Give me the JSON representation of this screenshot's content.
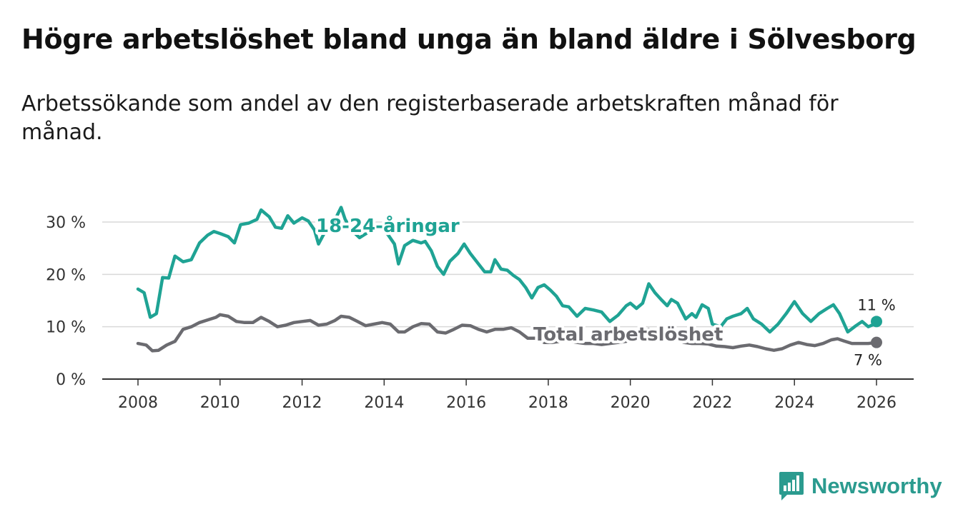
{
  "title": "Högre arbetslöshet bland unga än bland äldre i Sölvesborg",
  "subtitle": "Arbetssökande som andel av den registerbaserade arbetskraften månad för månad.",
  "brand": {
    "name": "Newsworthy",
    "icon": "newsworthy-bar-chart-icon",
    "color": "#2b9b8f"
  },
  "chart_data": {
    "type": "line",
    "title": "Högre arbetslöshet bland unga än bland äldre i Sölvesborg",
    "xlabel": "",
    "ylabel": "",
    "xlim": [
      2007.5,
      2026.9
    ],
    "ylim": [
      0,
      30
    ],
    "y_ticks": [
      0,
      10,
      20,
      30
    ],
    "y_tick_labels": [
      "0 %",
      "10 %",
      "20 %",
      "30 %"
    ],
    "x_ticks": [
      2008,
      2010,
      2012,
      2014,
      2016,
      2018,
      2020,
      2022,
      2024,
      2026
    ],
    "x_tick_labels": [
      "2008",
      "2010",
      "2012",
      "2014",
      "2016",
      "2018",
      "2020",
      "2022",
      "2024",
      "2026"
    ],
    "grid": true,
    "series": [
      {
        "name": "18-24-åringar",
        "label": "18-24-åringar",
        "color": "#1fa394",
        "end_label": "11 %",
        "points": [
          [
            2008.0,
            17.2
          ],
          [
            2008.15,
            16.5
          ],
          [
            2008.3,
            11.8
          ],
          [
            2008.45,
            12.5
          ],
          [
            2008.6,
            19.4
          ],
          [
            2008.75,
            19.3
          ],
          [
            2008.9,
            23.5
          ],
          [
            2009.1,
            22.4
          ],
          [
            2009.3,
            22.8
          ],
          [
            2009.5,
            26.0
          ],
          [
            2009.7,
            27.5
          ],
          [
            2009.85,
            28.2
          ],
          [
            2010.0,
            27.8
          ],
          [
            2010.2,
            27.2
          ],
          [
            2010.35,
            26.0
          ],
          [
            2010.5,
            29.5
          ],
          [
            2010.7,
            29.8
          ],
          [
            2010.9,
            30.5
          ],
          [
            2011.0,
            32.3
          ],
          [
            2011.2,
            31.0
          ],
          [
            2011.35,
            29.0
          ],
          [
            2011.5,
            28.8
          ],
          [
            2011.65,
            31.2
          ],
          [
            2011.8,
            29.8
          ],
          [
            2012.0,
            30.8
          ],
          [
            2012.15,
            30.2
          ],
          [
            2012.3,
            28.5
          ],
          [
            2012.4,
            25.8
          ],
          [
            2012.55,
            28.0
          ],
          [
            2012.7,
            29.2
          ],
          [
            2012.85,
            31.2
          ],
          [
            2012.95,
            32.8
          ],
          [
            2013.05,
            30.5
          ],
          [
            2013.2,
            28.5
          ],
          [
            2013.4,
            27.0
          ],
          [
            2013.6,
            28.0
          ],
          [
            2013.8,
            29.5
          ],
          [
            2013.95,
            28.8
          ],
          [
            2014.1,
            27.5
          ],
          [
            2014.25,
            25.8
          ],
          [
            2014.35,
            22.0
          ],
          [
            2014.5,
            25.5
          ],
          [
            2014.7,
            26.5
          ],
          [
            2014.9,
            26.0
          ],
          [
            2015.0,
            26.3
          ],
          [
            2015.15,
            24.5
          ],
          [
            2015.3,
            21.5
          ],
          [
            2015.45,
            20.0
          ],
          [
            2015.6,
            22.5
          ],
          [
            2015.8,
            24.0
          ],
          [
            2015.95,
            25.8
          ],
          [
            2016.1,
            24.0
          ],
          [
            2016.3,
            22.0
          ],
          [
            2016.45,
            20.5
          ],
          [
            2016.6,
            20.5
          ],
          [
            2016.7,
            22.8
          ],
          [
            2016.85,
            21.0
          ],
          [
            2017.0,
            20.8
          ],
          [
            2017.15,
            19.8
          ],
          [
            2017.3,
            19.0
          ],
          [
            2017.45,
            17.5
          ],
          [
            2017.6,
            15.5
          ],
          [
            2017.75,
            17.5
          ],
          [
            2017.9,
            18.0
          ],
          [
            2018.05,
            17.0
          ],
          [
            2018.2,
            15.8
          ],
          [
            2018.35,
            14.0
          ],
          [
            2018.5,
            13.8
          ],
          [
            2018.7,
            12.0
          ],
          [
            2018.9,
            13.5
          ],
          [
            2019.1,
            13.2
          ],
          [
            2019.3,
            12.8
          ],
          [
            2019.5,
            11.0
          ],
          [
            2019.7,
            12.2
          ],
          [
            2019.9,
            14.0
          ],
          [
            2020.0,
            14.5
          ],
          [
            2020.15,
            13.5
          ],
          [
            2020.3,
            14.5
          ],
          [
            2020.45,
            18.2
          ],
          [
            2020.6,
            16.5
          ],
          [
            2020.75,
            15.2
          ],
          [
            2020.9,
            14.0
          ],
          [
            2021.0,
            15.2
          ],
          [
            2021.15,
            14.5
          ],
          [
            2021.35,
            11.5
          ],
          [
            2021.5,
            12.5
          ],
          [
            2021.6,
            11.8
          ],
          [
            2021.75,
            14.2
          ],
          [
            2021.9,
            13.5
          ],
          [
            2022.0,
            10.5
          ],
          [
            2022.2,
            10.0
          ],
          [
            2022.35,
            11.5
          ],
          [
            2022.5,
            12.0
          ],
          [
            2022.7,
            12.5
          ],
          [
            2022.85,
            13.5
          ],
          [
            2023.0,
            11.5
          ],
          [
            2023.2,
            10.5
          ],
          [
            2023.4,
            9.0
          ],
          [
            2023.6,
            10.5
          ],
          [
            2023.8,
            12.5
          ],
          [
            2024.0,
            14.8
          ],
          [
            2024.2,
            12.5
          ],
          [
            2024.4,
            11.0
          ],
          [
            2024.6,
            12.5
          ],
          [
            2024.8,
            13.5
          ],
          [
            2024.95,
            14.2
          ],
          [
            2025.1,
            12.5
          ],
          [
            2025.3,
            9.0
          ],
          [
            2025.5,
            10.2
          ],
          [
            2025.65,
            11.0
          ],
          [
            2025.8,
            10.0
          ],
          [
            2025.95,
            10.5
          ],
          [
            2026.0,
            11.0
          ]
        ]
      },
      {
        "name": "Total arbetslöshet",
        "label": "Total arbetslöshet",
        "color": "#6b6b70",
        "end_label": "7 %",
        "points": [
          [
            2008.0,
            6.8
          ],
          [
            2008.2,
            6.5
          ],
          [
            2008.35,
            5.4
          ],
          [
            2008.5,
            5.5
          ],
          [
            2008.7,
            6.5
          ],
          [
            2008.9,
            7.2
          ],
          [
            2009.1,
            9.5
          ],
          [
            2009.3,
            10.0
          ],
          [
            2009.5,
            10.8
          ],
          [
            2009.7,
            11.3
          ],
          [
            2009.9,
            11.8
          ],
          [
            2010.0,
            12.3
          ],
          [
            2010.2,
            12.0
          ],
          [
            2010.4,
            11.0
          ],
          [
            2010.6,
            10.8
          ],
          [
            2010.8,
            10.8
          ],
          [
            2011.0,
            11.8
          ],
          [
            2011.2,
            11.0
          ],
          [
            2011.4,
            10.0
          ],
          [
            2011.6,
            10.3
          ],
          [
            2011.8,
            10.8
          ],
          [
            2012.0,
            11.0
          ],
          [
            2012.2,
            11.2
          ],
          [
            2012.4,
            10.3
          ],
          [
            2012.6,
            10.5
          ],
          [
            2012.8,
            11.2
          ],
          [
            2012.95,
            12.0
          ],
          [
            2013.15,
            11.8
          ],
          [
            2013.35,
            11.0
          ],
          [
            2013.55,
            10.2
          ],
          [
            2013.75,
            10.5
          ],
          [
            2013.95,
            10.8
          ],
          [
            2014.15,
            10.5
          ],
          [
            2014.35,
            9.0
          ],
          [
            2014.5,
            9.0
          ],
          [
            2014.7,
            10.0
          ],
          [
            2014.9,
            10.6
          ],
          [
            2015.1,
            10.5
          ],
          [
            2015.3,
            9.0
          ],
          [
            2015.5,
            8.8
          ],
          [
            2015.7,
            9.5
          ],
          [
            2015.9,
            10.3
          ],
          [
            2016.1,
            10.2
          ],
          [
            2016.3,
            9.5
          ],
          [
            2016.5,
            9.0
          ],
          [
            2016.7,
            9.5
          ],
          [
            2016.9,
            9.5
          ],
          [
            2017.1,
            9.8
          ],
          [
            2017.3,
            9.0
          ],
          [
            2017.5,
            7.8
          ],
          [
            2017.7,
            7.8
          ],
          [
            2017.9,
            7.0
          ],
          [
            2018.1,
            7.0
          ],
          [
            2018.3,
            7.2
          ],
          [
            2018.5,
            7.3
          ],
          [
            2018.7,
            7.0
          ],
          [
            2018.9,
            6.8
          ],
          [
            2019.1,
            6.8
          ],
          [
            2019.3,
            6.6
          ],
          [
            2019.5,
            6.8
          ],
          [
            2019.7,
            7.0
          ],
          [
            2019.9,
            7.2
          ],
          [
            2020.1,
            8.5
          ],
          [
            2020.3,
            9.5
          ],
          [
            2020.5,
            9.5
          ],
          [
            2020.7,
            8.5
          ],
          [
            2020.9,
            8.0
          ],
          [
            2021.1,
            7.8
          ],
          [
            2021.3,
            7.0
          ],
          [
            2021.5,
            6.8
          ],
          [
            2021.7,
            6.8
          ],
          [
            2021.9,
            6.7
          ],
          [
            2022.1,
            6.3
          ],
          [
            2022.3,
            6.2
          ],
          [
            2022.5,
            6.0
          ],
          [
            2022.7,
            6.3
          ],
          [
            2022.9,
            6.5
          ],
          [
            2023.1,
            6.2
          ],
          [
            2023.3,
            5.8
          ],
          [
            2023.5,
            5.5
          ],
          [
            2023.7,
            5.8
          ],
          [
            2023.9,
            6.5
          ],
          [
            2024.1,
            7.0
          ],
          [
            2024.3,
            6.6
          ],
          [
            2024.5,
            6.4
          ],
          [
            2024.7,
            6.8
          ],
          [
            2024.9,
            7.5
          ],
          [
            2025.05,
            7.7
          ],
          [
            2025.2,
            7.3
          ],
          [
            2025.4,
            6.8
          ],
          [
            2025.6,
            6.8
          ],
          [
            2025.8,
            6.8
          ],
          [
            2026.0,
            7.0
          ]
        ]
      }
    ]
  }
}
